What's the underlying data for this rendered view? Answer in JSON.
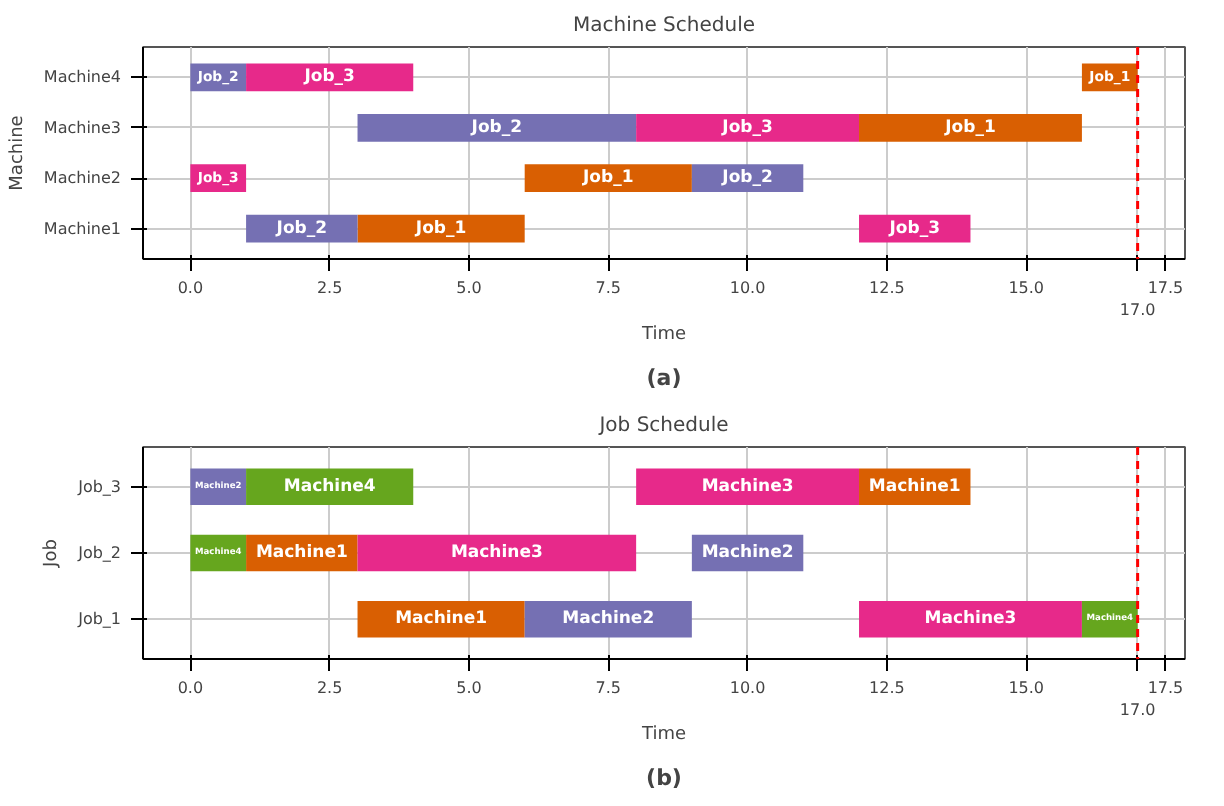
{
  "chart_data": [
    {
      "type": "bar",
      "orientation": "horizontal",
      "title": "Machine Schedule",
      "xlabel": "Time",
      "ylabel": "Machine",
      "categories": [
        "Machine4",
        "Machine3",
        "Machine2",
        "Machine1"
      ],
      "series": [
        {
          "name": "Job_1",
          "color": "#d95f02",
          "base": [
            16,
            12,
            6,
            3
          ],
          "values": [
            1,
            4,
            3,
            3
          ]
        },
        {
          "name": "Job_2",
          "color": "#7570b3",
          "base": [
            0,
            3,
            9,
            1
          ],
          "values": [
            1,
            5,
            2,
            2
          ]
        },
        {
          "name": "Job_3",
          "color": "#e7298a",
          "base": [
            1,
            8,
            0,
            12
          ],
          "values": [
            3,
            4,
            1,
            2
          ]
        }
      ],
      "xlim": [
        -0.85,
        17.85
      ],
      "xticks": [
        {
          "value": 0,
          "label": "0.0"
        },
        {
          "value": 2.5,
          "label": "2.5"
        },
        {
          "value": 5,
          "label": "5.0"
        },
        {
          "value": 7.5,
          "label": "7.5"
        },
        {
          "value": 10,
          "label": "10.0"
        },
        {
          "value": 12.5,
          "label": "12.5"
        },
        {
          "value": 15,
          "label": "15.0"
        },
        {
          "value": 17,
          "label": null
        },
        {
          "value": 17.5,
          "label": "17.5"
        }
      ],
      "ref_lines": [
        {
          "axis": "x",
          "value": 17,
          "label": "17.0",
          "color": "#ff0000",
          "line_style": "dashed"
        }
      ],
      "grid": true,
      "annotations": [
        "(a)"
      ]
    },
    {
      "type": "bar",
      "orientation": "horizontal",
      "title": "Job Schedule",
      "xlabel": "Time",
      "ylabel": "Job",
      "categories": [
        "Job_3",
        "Job_2",
        "Job_1"
      ],
      "series": [
        {
          "name": "Machine1",
          "color": "#d95f02",
          "base": [
            12,
            1,
            3
          ],
          "values": [
            2,
            2,
            3
          ]
        },
        {
          "name": "Machine2",
          "color": "#7570b3",
          "base": [
            0,
            9,
            6
          ],
          "values": [
            1,
            2,
            3
          ]
        },
        {
          "name": "Machine3",
          "color": "#e7298a",
          "base": [
            8,
            3,
            12
          ],
          "values": [
            4,
            5,
            4
          ]
        },
        {
          "name": "Machine4",
          "color": "#66a61e",
          "base": [
            1,
            0,
            16
          ],
          "values": [
            3,
            1,
            1
          ]
        }
      ],
      "xlim": [
        -0.85,
        17.85
      ],
      "xticks": [
        {
          "value": 0,
          "label": "0.0"
        },
        {
          "value": 2.5,
          "label": "2.5"
        },
        {
          "value": 5,
          "label": "5.0"
        },
        {
          "value": 7.5,
          "label": "7.5"
        },
        {
          "value": 10,
          "label": "10.0"
        },
        {
          "value": 12.5,
          "label": "12.5"
        },
        {
          "value": 15,
          "label": "15.0"
        },
        {
          "value": 17,
          "label": null
        },
        {
          "value": 17.5,
          "label": "17.5"
        }
      ],
      "ref_lines": [
        {
          "axis": "x",
          "value": 17,
          "label": "17.0",
          "color": "#ff0000",
          "line_style": "dashed"
        }
      ],
      "grid": true,
      "annotations": [
        "(b)"
      ]
    }
  ]
}
